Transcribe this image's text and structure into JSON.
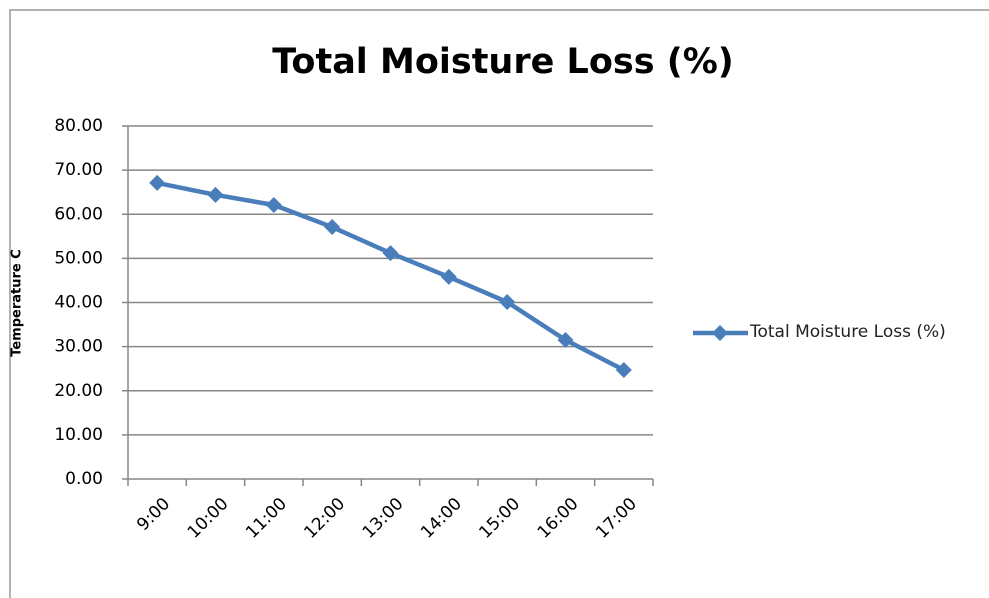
{
  "chart_data": {
    "type": "line",
    "title": "Total Moisture Loss (%)",
    "y_label": "Temperature C",
    "categories": [
      "9:00",
      "10:00",
      "11:00",
      "12:00",
      "13:00",
      "14:00",
      "15:00",
      "16:00",
      "17:00"
    ],
    "series": [
      {
        "name": "Total Moisture Loss (%)",
        "color": "#4a7ebb",
        "values": [
          67.1,
          64.4,
          62.1,
          57.1,
          51.2,
          45.8,
          40.1,
          31.5,
          24.7
        ]
      }
    ],
    "ylim": [
      0,
      80
    ],
    "yticks": [
      {
        "value": 0,
        "label": "0.00"
      },
      {
        "value": 10,
        "label": "10.00"
      },
      {
        "value": 20,
        "label": "20.00"
      },
      {
        "value": 30,
        "label": "30.00"
      },
      {
        "value": 40,
        "label": "40.00"
      },
      {
        "value": 50,
        "label": "50.00"
      },
      {
        "value": 60,
        "label": "60.00"
      },
      {
        "value": 70,
        "label": "70.00"
      },
      {
        "value": 80,
        "label": "80.00"
      }
    ],
    "grid": true,
    "legend": "right"
  }
}
